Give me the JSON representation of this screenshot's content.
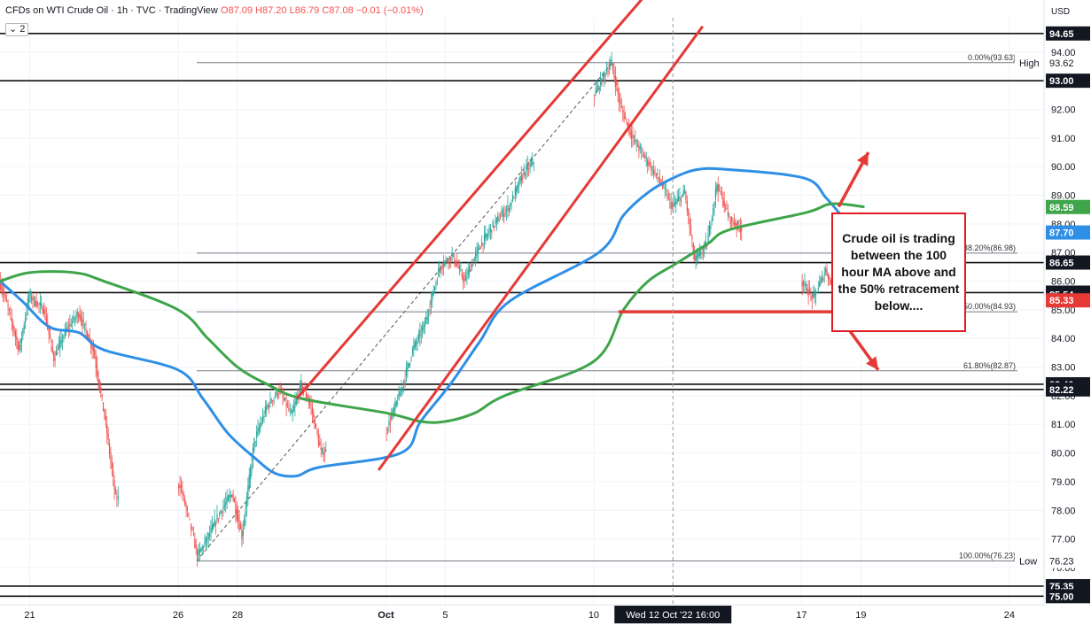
{
  "header": {
    "symbol": "CFDs on WTI Crude Oil · 1h · TVC · TradingView",
    "open": "O87.09",
    "high": "H87.20",
    "low": "L86.79",
    "close": "C87.08",
    "change": "−0.01 (−0.01%)",
    "layout_badge": "2"
  },
  "colors": {
    "candle_up": "#26a69a",
    "candle_down": "#ef5350",
    "ma_100": "#2f8fe6",
    "ma_200": "#3ea54a",
    "channel": "#e53935",
    "arrow": "#e53935",
    "zone": "#ffff00",
    "callout_border": "#e31b23"
  },
  "annotation": {
    "callout": "Crude oil is trading between the 100 hour MA above and the 50% retracement below...."
  },
  "chart_data": {
    "type": "candlestick",
    "title": "",
    "currency": "USD",
    "ylim": [
      74.7,
      95.2
    ],
    "yticks": [
      75.0,
      76.0,
      77.0,
      78.0,
      79.0,
      80.0,
      81.0,
      82.0,
      83.0,
      84.0,
      85.0,
      86.0,
      87.0,
      88.0,
      89.0,
      90.0,
      91.0,
      92.0,
      93.0,
      94.0
    ],
    "xrange": [
      "2022-09-20 00:00",
      "2022-10-25 04:00"
    ],
    "x_ticks": [
      {
        "label": "21",
        "date": "2022-09-21 00:00"
      },
      {
        "label": "26",
        "date": "2022-09-26 00:00"
      },
      {
        "label": "28",
        "date": "2022-09-28 00:00"
      },
      {
        "label": "Oct",
        "date": "2022-10-03 00:00"
      },
      {
        "label": "5",
        "date": "2022-10-05 00:00"
      },
      {
        "label": "10",
        "date": "2022-10-10 00:00"
      },
      {
        "label": "17",
        "date": "2022-10-17 00:00"
      },
      {
        "label": "19",
        "date": "2022-10-19 00:00"
      },
      {
        "label": "24",
        "date": "2022-10-24 00:00"
      }
    ],
    "cursor": {
      "label": "Wed 12 Oct '22   16:00",
      "date": "2022-10-12 16:00"
    },
    "horizontal_levels": [
      94.65,
      93.0,
      86.65,
      85.6,
      82.4,
      82.22,
      75.35,
      75.0
    ],
    "price_labels": [
      {
        "value": 94.65,
        "text": "94.65",
        "style": "dark"
      },
      {
        "value": 93.62,
        "text": "93.62",
        "style": "plain",
        "tag": "High"
      },
      {
        "value": 93.0,
        "text": "93.00",
        "style": "dark"
      },
      {
        "value": 88.59,
        "text": "88.59",
        "style": "green"
      },
      {
        "value": 87.7,
        "text": "87.70",
        "style": "blue"
      },
      {
        "value": 86.65,
        "text": "86.65",
        "style": "dark"
      },
      {
        "value": 85.6,
        "text": "85.60",
        "style": "dark"
      },
      {
        "value": 85.54,
        "text": "85.54",
        "style": "dark"
      },
      {
        "value": 85.33,
        "text": "85.33",
        "style": "red"
      },
      {
        "value": 82.4,
        "text": "82.40",
        "style": "dark"
      },
      {
        "value": 82.22,
        "text": "82.22",
        "style": "dark"
      },
      {
        "value": 76.23,
        "text": "76.23",
        "style": "plain",
        "tag": "Low"
      },
      {
        "value": 75.35,
        "text": "75.35",
        "style": "dark"
      },
      {
        "value": 75.0,
        "text": "75.00",
        "style": "dark"
      }
    ],
    "fibonacci": {
      "from": {
        "date": "2022-09-26 15:00",
        "value": 76.23
      },
      "to": {
        "date": "2022-10-10 15:00",
        "value": 93.63
      },
      "levels": [
        {
          "text": "0.00%(93.63)",
          "value": 93.63
        },
        {
          "text": "38.20%(86.98)",
          "value": 86.98
        },
        {
          "text": "50.00%(84.93)",
          "value": 84.93
        },
        {
          "text": "61.80%(82.87)",
          "value": 82.87
        },
        {
          "text": "100.00%(76.23)",
          "value": 76.23
        }
      ]
    },
    "zone": {
      "from_date": "2022-10-18 06:00",
      "to_date": "2022-10-21 06:00",
      "top": 87.75,
      "bottom": 84.93
    },
    "support_line": {
      "from_date": "2022-10-10 20:00",
      "to_date": "2022-10-21 06:00",
      "value": 84.93
    },
    "channel": [
      {
        "from": {
          "date": "2022-09-30 00:00",
          "value": 81.9
        },
        "to": {
          "date": "2022-10-12 06:00",
          "value": 96.6
        }
      },
      {
        "from": {
          "date": "2022-10-02 18:00",
          "value": 79.4
        },
        "to": {
          "date": "2022-10-13 16:00",
          "value": 94.9
        }
      }
    ],
    "arrows": [
      {
        "from": {
          "date": "2022-10-18 06:00",
          "value": 88.6
        },
        "to": {
          "date": "2022-10-19 06:00",
          "value": 90.5
        }
      },
      {
        "from": {
          "date": "2022-10-21 06:00",
          "value": 87.3
        },
        "to": {
          "date": "2022-10-18 02:00",
          "value": 87.75
        }
      },
      {
        "from": {
          "date": "2022-10-21 06:00",
          "value": 85.0
        },
        "to": {
          "date": "2022-10-18 02:00",
          "value": 84.93
        }
      },
      {
        "from": {
          "date": "2022-10-18 06:00",
          "value": 84.8
        },
        "to": {
          "date": "2022-10-19 14:00",
          "value": 82.9
        }
      }
    ],
    "series": [
      {
        "type": "ma",
        "period": 100,
        "points": [
          [
            "2022-09-20 00:00",
            86.0
          ],
          [
            "2022-09-20 18:00",
            85.3
          ],
          [
            "2022-09-21 16:00",
            84.4
          ],
          [
            "2022-09-22 16:00",
            84.2
          ],
          [
            "2022-09-23 12:00",
            83.6
          ],
          [
            "2022-09-26 00:00",
            82.9
          ],
          [
            "2022-09-26 20:00",
            81.9
          ],
          [
            "2022-09-27 16:00",
            80.7
          ],
          [
            "2022-09-28 12:00",
            79.9
          ],
          [
            "2022-09-29 06:00",
            79.3
          ],
          [
            "2022-09-30 00:00",
            79.2
          ],
          [
            "2022-09-30 18:00",
            79.5
          ],
          [
            "2022-10-03 12:00",
            80.0
          ],
          [
            "2022-10-04 04:00",
            81.1
          ],
          [
            "2022-10-05 04:00",
            82.4
          ],
          [
            "2022-10-06 04:00",
            83.9
          ],
          [
            "2022-10-07 04:00",
            85.3
          ],
          [
            "2022-10-10 04:00",
            87.0
          ],
          [
            "2022-10-11 00:00",
            88.3
          ],
          [
            "2022-10-11 20:00",
            89.1
          ],
          [
            "2022-10-12 16:00",
            89.6
          ],
          [
            "2022-10-13 12:00",
            89.9
          ],
          [
            "2022-10-14 12:00",
            89.9
          ],
          [
            "2022-10-17 02:00",
            89.6
          ],
          [
            "2022-10-17 20:00",
            88.9
          ],
          [
            "2022-10-18 12:00",
            88.1
          ],
          [
            "2022-10-18 22:00",
            87.7
          ]
        ]
      },
      {
        "type": "ma",
        "period": 200,
        "points": [
          [
            "2022-09-20 00:00",
            86.0
          ],
          [
            "2022-09-21 00:00",
            86.3
          ],
          [
            "2022-09-22 12:00",
            86.3
          ],
          [
            "2022-09-23 12:00",
            86.0
          ],
          [
            "2022-09-26 00:00",
            85.0
          ],
          [
            "2022-09-27 00:00",
            84.0
          ],
          [
            "2022-09-28 00:00",
            83.0
          ],
          [
            "2022-09-29 00:00",
            82.4
          ],
          [
            "2022-09-30 04:00",
            81.9
          ],
          [
            "2022-10-03 00:00",
            81.4
          ],
          [
            "2022-10-04 04:00",
            81.1
          ],
          [
            "2022-10-05 00:00",
            81.1
          ],
          [
            "2022-10-06 00:00",
            81.4
          ],
          [
            "2022-10-07 00:00",
            82.0
          ],
          [
            "2022-10-10 00:00",
            83.2
          ],
          [
            "2022-10-11 00:00",
            85.0
          ],
          [
            "2022-10-11 20:00",
            86.0
          ],
          [
            "2022-10-12 18:00",
            86.6
          ],
          [
            "2022-10-13 20:00",
            87.3
          ],
          [
            "2022-10-14 14:00",
            87.8
          ],
          [
            "2022-10-17 04:00",
            88.4
          ],
          [
            "2022-10-18 00:00",
            88.7
          ],
          [
            "2022-10-19 02:00",
            88.6
          ]
        ]
      },
      {
        "type": "price_path",
        "points": [
          [
            "2022-09-20 00:00",
            86.0
          ],
          [
            "2022-09-20 06:00",
            85.2
          ],
          [
            "2022-09-20 16:00",
            83.6
          ],
          [
            "2022-09-21 00:00",
            85.5
          ],
          [
            "2022-09-21 12:00",
            85.0
          ],
          [
            "2022-09-21 20:00",
            83.3
          ],
          [
            "2022-09-22 06:00",
            84.3
          ],
          [
            "2022-09-22 16:00",
            84.9
          ],
          [
            "2022-09-23 04:00",
            83.6
          ],
          [
            "2022-09-23 14:00",
            81.0
          ],
          [
            "2022-09-23 22:00",
            78.4
          ],
          [
            "2022-09-26 02:00",
            78.9
          ],
          [
            "2022-09-26 12:00",
            77.2
          ],
          [
            "2022-09-26 16:00",
            76.4
          ],
          [
            "2022-09-27 00:00",
            77.0
          ],
          [
            "2022-09-27 10:00",
            77.9
          ],
          [
            "2022-09-27 20:00",
            78.6
          ],
          [
            "2022-09-28 04:00",
            77.1
          ],
          [
            "2022-09-28 14:00",
            80.4
          ],
          [
            "2022-09-29 00:00",
            81.6
          ],
          [
            "2022-09-29 10:00",
            82.2
          ],
          [
            "2022-09-29 20:00",
            81.3
          ],
          [
            "2022-09-30 04:00",
            82.4
          ],
          [
            "2022-09-30 12:00",
            81.6
          ],
          [
            "2022-09-30 20:00",
            80.0
          ],
          [
            "2022-10-03 00:00",
            80.7
          ],
          [
            "2022-10-03 12:00",
            82.1
          ],
          [
            "2022-10-03 22:00",
            83.6
          ],
          [
            "2022-10-04 08:00",
            84.5
          ],
          [
            "2022-10-04 20:00",
            86.5
          ],
          [
            "2022-10-05 06:00",
            86.9
          ],
          [
            "2022-10-05 16:00",
            86.0
          ],
          [
            "2022-10-06 04:00",
            87.2
          ],
          [
            "2022-10-06 16:00",
            88.0
          ],
          [
            "2022-10-07 04:00",
            88.6
          ],
          [
            "2022-10-07 16:00",
            89.8
          ],
          [
            "2022-10-10 00:00",
            92.4
          ],
          [
            "2022-10-10 10:00",
            93.3
          ],
          [
            "2022-10-10 15:00",
            93.6
          ],
          [
            "2022-10-10 22:00",
            92.1
          ],
          [
            "2022-10-11 08:00",
            91.0
          ],
          [
            "2022-10-11 18:00",
            90.3
          ],
          [
            "2022-10-12 06:00",
            89.5
          ],
          [
            "2022-10-12 16:00",
            88.6
          ],
          [
            "2022-10-13 02:00",
            89.1
          ],
          [
            "2022-10-13 10:00",
            86.7
          ],
          [
            "2022-10-13 20:00",
            87.3
          ],
          [
            "2022-10-14 04:00",
            89.4
          ],
          [
            "2022-10-14 14:00",
            88.2
          ],
          [
            "2022-10-17 00:00",
            86.0
          ],
          [
            "2022-10-17 10:00",
            85.4
          ],
          [
            "2022-10-17 20:00",
            86.4
          ],
          [
            "2022-10-18 06:00",
            85.2
          ],
          [
            "2022-10-18 14:00",
            86.3
          ],
          [
            "2022-10-18 20:00",
            87.08
          ]
        ]
      }
    ]
  }
}
